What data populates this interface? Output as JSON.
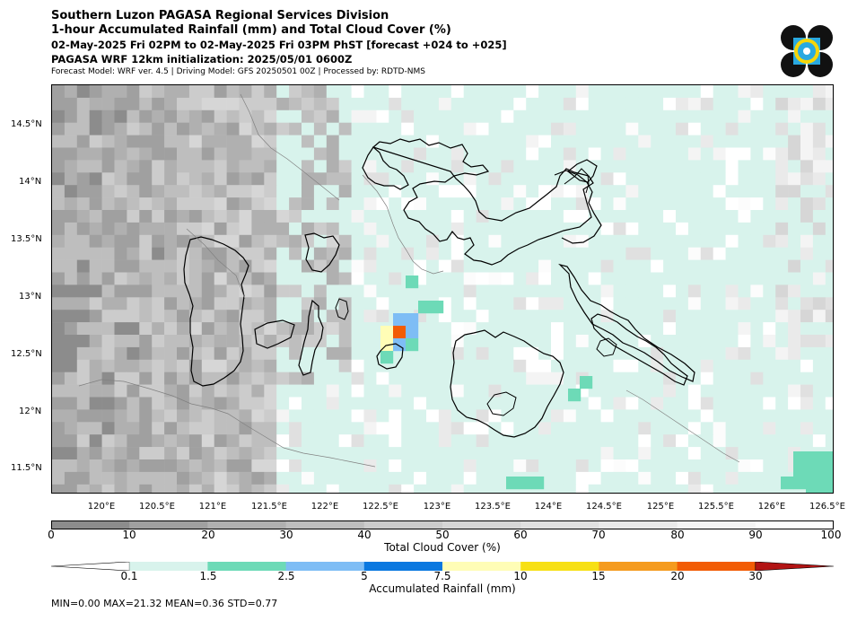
{
  "header": {
    "title_line1": "Southern Luzon PAGASA Regional Services Division",
    "title_line2": "1-hour Accumulated Rainfall (mm) and Total Cloud Cover (%)",
    "title_line3": "02-May-2025 Fri 02PM to 02-May-2025 Fri 03PM PhST [forecast +024 to +025]",
    "title_line4": "PAGASA WRF 12km initialization: 2025/05/01 0600Z",
    "title_line5": "Forecast Model: WRF ver. 4.5 | Driving Model: GFS 20250501 00Z | Processed by: RDTD-NMS"
  },
  "logo": {
    "name": "pagasa-logo",
    "colors": [
      "#111111",
      "#29a9e0",
      "#f5d60a"
    ]
  },
  "map": {
    "lat_labels": [
      "14.5°N",
      "14°N",
      "13.5°N",
      "13°N",
      "12.5°N",
      "12°N",
      "11.5°N"
    ],
    "lon_labels": [
      "120°E",
      "120.5°E",
      "121°E",
      "121.5°E",
      "122°E",
      "122.5°E",
      "123°E",
      "123.5°E",
      "124°E",
      "124.5°E",
      "125°E",
      "125.5°E",
      "126°E",
      "126.5°E"
    ]
  },
  "cloud_colorbar": {
    "ticks": [
      "0",
      "10",
      "20",
      "30",
      "40",
      "50",
      "60",
      "70",
      "80",
      "90",
      "100"
    ],
    "label": "Total Cloud Cover (%)",
    "colors": [
      "#8c8c8c",
      "#a0a0a0",
      "#b0b0b0",
      "#bebebe",
      "#cccccc",
      "#d6d6d6",
      "#e0e0e0",
      "#eaeaea",
      "#f4f4f4",
      "#fcfcfc"
    ]
  },
  "rain_colorbar": {
    "ticks": [
      "0.1",
      "1.5",
      "2.5",
      "5",
      "7.5",
      "10",
      "15",
      "20",
      "30"
    ],
    "label": "Accumulated Rainfall (mm)",
    "colors": [
      "#d8f3ec",
      "#6ddab7",
      "#7ebdf5",
      "#0a78e0",
      "#fffdb6",
      "#f7e014",
      "#f59b1e",
      "#f25c05",
      "#b21414"
    ]
  },
  "stats": "MIN=0.00   MAX=21.32   MEAN=0.36   STD=0.77"
}
